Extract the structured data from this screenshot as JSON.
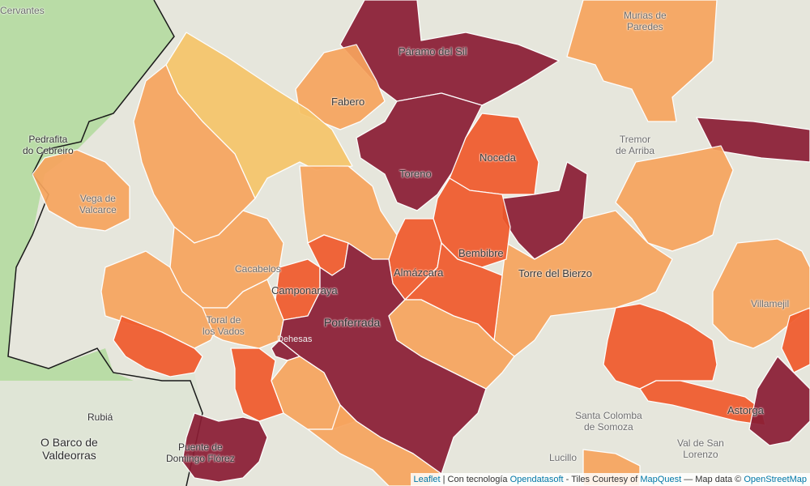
{
  "colors": {
    "basemap": "#e6e6dc",
    "basemap_green": "#b9dca6",
    "province_border": "#1a1a1a",
    "class_1": "#f6c56a",
    "class_2": "#f7a45e",
    "class_3": "#f05a2c",
    "class_4": "#8a1d34"
  },
  "labels": {
    "cervantes": "Cervantes",
    "murias": "Murias de\nParedes",
    "paramo": "Páramo del Sil",
    "fabero": "Fabero",
    "pedrafita": "Pedrafita\ndo Cebreiro",
    "tremor": "Tremor\nde Arriba",
    "noceda": "Noceda",
    "toreno": "Toreno",
    "vega": "Vega de\nValcarce",
    "cacabelos": "Cacabelos",
    "bembibre": "Bembibre",
    "torre": "Torre del Bierzo",
    "almazcara": "Almázcara",
    "camponaraya": "Camponaraya",
    "villamejil": "Villamejil",
    "toral": "Toral de\nlos Vados",
    "ponferrada": "Ponferrada",
    "dehesas": "Dehesas",
    "rubia": "Rubiá",
    "barco": "O Barco de\nValdeorras",
    "santa_colomba": "Santa Colomba\nde Somoza",
    "val_san_lorenzo": "Val de San\nLorenzo",
    "astorga": "Astorga",
    "lucillo": "Lucillo",
    "puente": "Puente de\nDomingo Flórez"
  },
  "attribution": {
    "leaflet": "Leaflet",
    "sep1": " | Con tecnología ",
    "opendatasoft": "Opendatasoft",
    "sep2": " - Tiles Courtesy of ",
    "mapquest": "MapQuest",
    "sep3": " — Map data © ",
    "osm": "OpenStreetMap"
  }
}
